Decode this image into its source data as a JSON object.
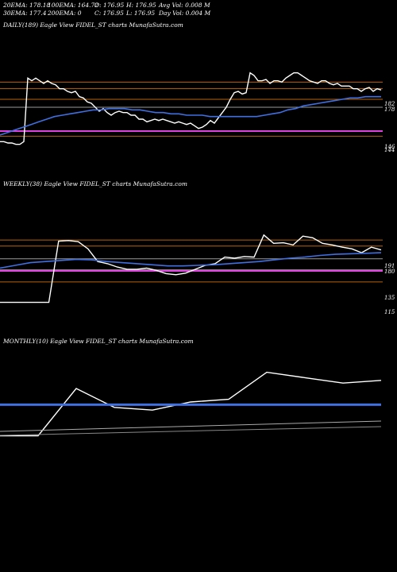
{
  "header": {
    "ema20": "20EMA: 178.18",
    "ema100": "100EMA: 164.72",
    "open": "O: 176.95",
    "high": "H: 176.95",
    "avg_vol": "Avg Vol: 0.008 M",
    "ema30": "30EMA: 177.4",
    "ema200": "200EMA: 0",
    "close": "C: 176.95",
    "low": "L: 176.95",
    "day_vol": "Day Vol: 0.004 M"
  },
  "panels": {
    "daily_title": "DAILY(189) Eagle  View  FIDEL_ST charts MunafaSutra.com",
    "weekly_title": "WEEKLY(38) Eagle  View  FIDEL_ST charts MunafaSutra.com",
    "monthly_title": "MONTHLY(10) Eagle  View  FIDEL_ST charts MunafaSutra.com"
  },
  "colors": {
    "price": "#ffffff",
    "ema_blue": "#3f6fe0",
    "support_magenta": "#e040e0",
    "level_orange": "#b8620a",
    "level_grey": "#9a9a9a"
  },
  "chart_data": [
    {
      "type": "line",
      "title": "DAILY(189) Eagle  View  FIDEL_ST charts MunafaSutra.com",
      "ylim": [
        125,
        200
      ],
      "level_labels": [
        "182",
        "178",
        "146",
        "144"
      ],
      "levels": [
        {
          "value": 183,
          "color": "level_orange"
        },
        {
          "value": 178,
          "color": "level_orange"
        },
        {
          "value": 170,
          "color": "level_orange"
        },
        {
          "value": 164,
          "color": "level_grey"
        },
        {
          "value": 146,
          "color": "support_magenta"
        },
        {
          "value": 142,
          "color": "level_orange"
        }
      ],
      "series": [
        {
          "key": "price",
          "color": "price",
          "values": [
            138,
            138,
            137,
            137,
            136,
            136,
            138,
            186,
            184,
            186,
            184,
            182,
            184,
            182,
            181,
            178,
            178,
            176,
            175,
            176,
            172,
            171,
            168,
            167,
            164,
            161,
            163,
            160,
            158,
            160,
            161,
            160,
            160,
            158,
            158,
            155,
            155,
            153,
            154,
            155,
            154,
            155,
            154,
            153,
            152,
            153,
            152,
            151,
            152,
            150,
            148,
            149,
            151,
            154,
            152,
            156,
            160,
            164,
            170,
            175,
            176,
            174,
            175,
            190,
            188,
            184,
            184,
            185,
            182,
            184,
            184,
            183,
            186,
            188,
            190,
            190,
            188,
            186,
            184,
            183,
            182,
            184,
            184,
            182,
            181,
            182,
            180,
            180,
            180,
            178,
            178,
            176,
            178,
            179,
            176,
            178,
            177
          ]
        },
        {
          "key": "ema_fast",
          "color": "ema_blue",
          "values": [
            143,
            145,
            147,
            149,
            151,
            153,
            155,
            157,
            158,
            159,
            160,
            161,
            162,
            162,
            163,
            163,
            163,
            162,
            162,
            161,
            160,
            160,
            159,
            159,
            158,
            158,
            158,
            157,
            157,
            157,
            157,
            157,
            157,
            157,
            158,
            159,
            160,
            162,
            163,
            165,
            166,
            167,
            168,
            169,
            170,
            171,
            171,
            172,
            172,
            172
          ]
        }
      ]
    },
    {
      "type": "line",
      "title": "WEEKLY(38) Eagle  View  FIDEL_ST charts MunafaSutra.com",
      "ylim": [
        50,
        230
      ],
      "level_labels": [
        "191",
        "180",
        "135",
        "115"
      ],
      "levels": [
        {
          "value": 191,
          "color": "level_orange"
        },
        {
          "value": 180,
          "color": "level_orange"
        },
        {
          "value": 157,
          "color": "level_grey"
        },
        {
          "value": 137,
          "color": "level_grey"
        },
        {
          "value": 135,
          "color": "support_magenta"
        },
        {
          "value": 115,
          "color": "level_orange"
        }
      ],
      "series": [
        {
          "key": "price",
          "color": "price",
          "values": [
            78,
            78,
            78,
            78,
            78,
            78,
            189,
            190,
            188,
            175,
            152,
            148,
            142,
            138,
            138,
            140,
            136,
            130,
            128,
            131,
            138,
            145,
            148,
            160,
            158,
            161,
            160,
            200,
            185,
            186,
            182,
            198,
            195,
            185,
            182,
            178,
            175,
            168,
            178,
            173
          ]
        },
        {
          "key": "ema_fast",
          "color": "ema_blue",
          "values": [
            140,
            145,
            150,
            152,
            154,
            156,
            155,
            152,
            150,
            148,
            146,
            144,
            144,
            145,
            146,
            148,
            150,
            152,
            155,
            158,
            160,
            163,
            165,
            166,
            167,
            168
          ]
        }
      ]
    },
    {
      "type": "line",
      "title": "MONTHLY(10) Eagle  View  FIDEL_ST charts MunafaSutra.com",
      "ylim": [
        0,
        1
      ],
      "level_labels": [],
      "series": [
        {
          "key": "price",
          "color": "price",
          "values": [
            0.45,
            0.45,
            0.8,
            0.66,
            0.64,
            0.7,
            0.72,
            0.92,
            0.88,
            0.84,
            0.86
          ]
        },
        {
          "key": "ema",
          "color": "ema_blue",
          "values": [
            0.68,
            0.68
          ]
        }
      ]
    }
  ]
}
